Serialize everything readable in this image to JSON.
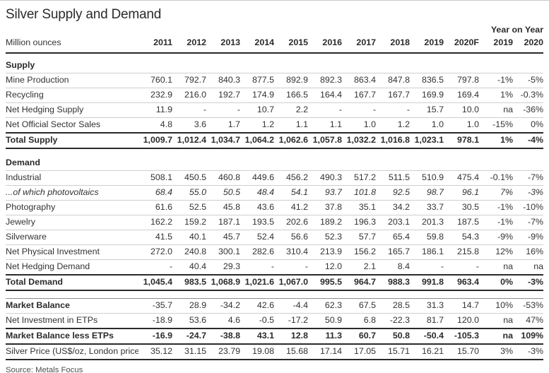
{
  "header": {
    "title": "Silver Supply and Demand",
    "unit_label": "Million ounces",
    "yoy_label": "Year on Year"
  },
  "footer": {
    "source": "Source: Metals Focus"
  },
  "table": {
    "year_columns": [
      "2011",
      "2012",
      "2013",
      "2014",
      "2015",
      "2016",
      "2017",
      "2018",
      "2019",
      "2020F"
    ],
    "yoy_columns": [
      "2019",
      "2020"
    ],
    "rows": [
      {
        "style": "section",
        "first": true,
        "label": "Supply"
      },
      {
        "style": "data",
        "label": "Mine Production",
        "values": [
          "760.1",
          "792.7",
          "840.3",
          "877.5",
          "892.9",
          "892.3",
          "863.4",
          "847.8",
          "836.5",
          "797.8"
        ],
        "yoy": [
          "-1%",
          "-5%"
        ]
      },
      {
        "style": "data",
        "label": "Recycling",
        "values": [
          "232.9",
          "216.0",
          "192.7",
          "174.9",
          "166.5",
          "164.4",
          "167.7",
          "167.7",
          "169.9",
          "169.4"
        ],
        "yoy": [
          "1%",
          "-0.3%"
        ]
      },
      {
        "style": "data",
        "label": "Net Hedging Supply",
        "values": [
          "11.9",
          "-",
          "-",
          "10.7",
          "2.2",
          "-",
          "-",
          "-",
          "15.7",
          "10.0"
        ],
        "yoy": [
          "na",
          "-36%"
        ]
      },
      {
        "style": "data",
        "label": "Net Official Sector Sales",
        "values": [
          "4.8",
          "3.6",
          "1.7",
          "1.2",
          "1.1",
          "1.1",
          "1.0",
          "1.2",
          "1.0",
          "1.0"
        ],
        "yoy": [
          "-15%",
          "0%"
        ]
      },
      {
        "style": "total",
        "label": "Total Supply",
        "values": [
          "1,009.7",
          "1,012.4",
          "1,034.7",
          "1,064.2",
          "1,062.6",
          "1,057.8",
          "1,032.2",
          "1,016.8",
          "1,023.1",
          "978.1"
        ],
        "yoy": [
          "1%",
          "-4%"
        ]
      },
      {
        "style": "gap"
      },
      {
        "style": "section",
        "label": "Demand"
      },
      {
        "style": "data",
        "label": "Industrial",
        "values": [
          "508.1",
          "450.5",
          "460.8",
          "449.6",
          "456.2",
          "490.3",
          "517.2",
          "511.5",
          "510.9",
          "475.4"
        ],
        "yoy": [
          "-0.1%",
          "-7%"
        ]
      },
      {
        "style": "italic",
        "label": "...of which photovoltaics",
        "values": [
          "68.4",
          "55.0",
          "50.5",
          "48.4",
          "54.1",
          "93.7",
          "101.8",
          "92.5",
          "98.7",
          "96.1"
        ],
        "yoy": [
          "7%",
          "-3%"
        ]
      },
      {
        "style": "data",
        "label": "Photography",
        "values": [
          "61.6",
          "52.5",
          "45.8",
          "43.6",
          "41.2",
          "37.8",
          "35.1",
          "34.2",
          "33.7",
          "30.5"
        ],
        "yoy": [
          "-1%",
          "-10%"
        ]
      },
      {
        "style": "data",
        "label": "Jewelry",
        "values": [
          "162.2",
          "159.2",
          "187.1",
          "193.5",
          "202.6",
          "189.2",
          "196.3",
          "203.1",
          "201.3",
          "187.5"
        ],
        "yoy": [
          "-1%",
          "-7%"
        ]
      },
      {
        "style": "data",
        "label": "Silverware",
        "values": [
          "41.5",
          "40.1",
          "45.7",
          "52.4",
          "56.6",
          "52.3",
          "57.7",
          "65.4",
          "59.8",
          "54.3"
        ],
        "yoy": [
          "-9%",
          "-9%"
        ]
      },
      {
        "style": "data",
        "label": "Net Physical Investment",
        "values": [
          "272.0",
          "240.8",
          "300.1",
          "282.6",
          "310.4",
          "213.9",
          "156.2",
          "165.7",
          "186.1",
          "215.8"
        ],
        "yoy": [
          "12%",
          "16%"
        ]
      },
      {
        "style": "data",
        "label": "Net Hedging Demand",
        "values": [
          "-",
          "40.4",
          "29.3",
          "-",
          "-",
          "12.0",
          "2.1",
          "8.4",
          "-",
          "-"
        ],
        "yoy": [
          "na",
          "na"
        ]
      },
      {
        "style": "total",
        "label": "Total Demand",
        "values": [
          "1,045.4",
          "983.5",
          "1,068.9",
          "1,021.6",
          "1,067.0",
          "995.5",
          "964.7",
          "988.3",
          "991.8",
          "963.4"
        ],
        "yoy": [
          "0%",
          "-3%"
        ]
      },
      {
        "style": "gap"
      },
      {
        "style": "boldlabel",
        "label": "Market Balance",
        "values": [
          "-35.7",
          "28.9",
          "-34.2",
          "42.6",
          "-4.4",
          "62.3",
          "67.5",
          "28.5",
          "31.3",
          "14.7"
        ],
        "yoy": [
          "10%",
          "-53%"
        ]
      },
      {
        "style": "data",
        "label": "Net Investment in ETPs",
        "values": [
          "-18.9",
          "53.6",
          "4.6",
          "-0.5",
          "-17.2",
          "50.9",
          "6.8",
          "-22.3",
          "81.7",
          "120.0"
        ],
        "yoy": [
          "na",
          "47%"
        ]
      },
      {
        "style": "total",
        "label": "Market Balance less ETPs",
        "values": [
          "-16.9",
          "-24.7",
          "-38.8",
          "43.1",
          "12.8",
          "11.3",
          "60.7",
          "50.8",
          "-50.4",
          "-105.3"
        ],
        "yoy": [
          "na",
          "109%"
        ]
      },
      {
        "style": "price",
        "label": "Silver Price (US$/oz, London price)",
        "values": [
          "35.12",
          "31.15",
          "23.79",
          "19.08",
          "15.68",
          "17.14",
          "17.05",
          "15.71",
          "16.21",
          "15.70"
        ],
        "yoy": [
          "3%",
          "-3%"
        ]
      }
    ]
  }
}
